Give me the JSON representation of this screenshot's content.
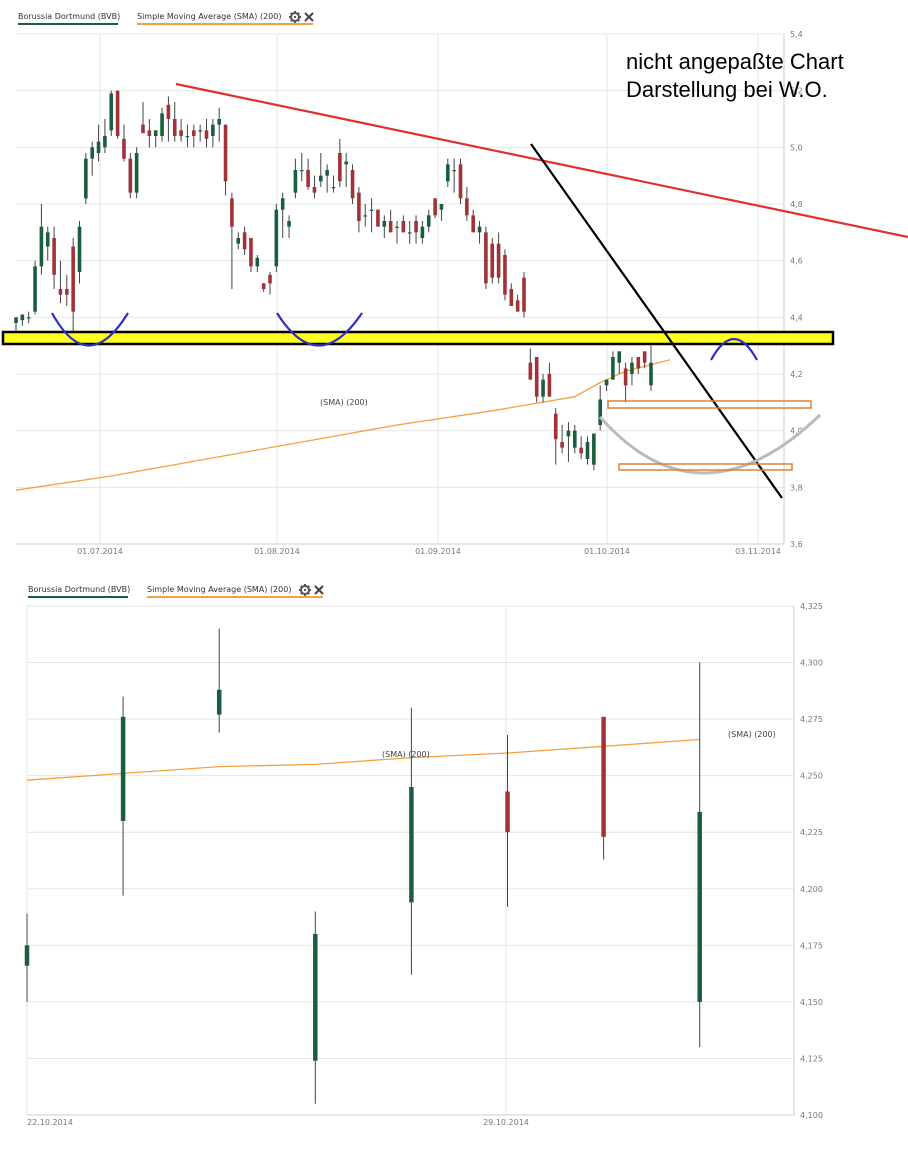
{
  "colors": {
    "up": "#1a5e3e",
    "down": "#a03238",
    "sma": "#f5a040",
    "grid": "#e6e6e6",
    "legend_stock": "#1a5e3e",
    "legend_sma": "#f5a040",
    "resistance": "#e03030",
    "trend": "#000000",
    "support_band": "#ffff20",
    "pattern_blue": "#3030c0",
    "pattern_gray": "#bbbbbb",
    "box_orange": "#e08030"
  },
  "annotation": {
    "line1": "nicht angepaßte Chart",
    "line2": "Darstellung bei W.O."
  },
  "chart_data": [
    {
      "type": "candlestick",
      "legend": {
        "series": "Borussia Dortmund (BVB)",
        "indicator": "Simple Moving Average (SMA) (200)",
        "gear_icon": "gear-icon",
        "close_icon": "close-icon"
      },
      "sma_label": "(SMA) (200)",
      "ylim": [
        3.6,
        5.4
      ],
      "yticks": [
        "5,4",
        "5,2",
        "5,0",
        "4,8",
        "4,6",
        "4,4",
        "4,2",
        "4,0",
        "3,8",
        "3,6"
      ],
      "xticks": [
        "01.07.2014",
        "01.08.2014",
        "01.09.2014",
        "01.10.2014",
        "03.11.2014"
      ],
      "candles": [
        {
          "o": 4.38,
          "h": 4.4,
          "l": 4.34,
          "c": 4.4
        },
        {
          "o": 4.39,
          "h": 4.41,
          "l": 4.37,
          "c": 4.41
        },
        {
          "o": 4.4,
          "h": 4.42,
          "l": 4.38,
          "c": 4.4
        },
        {
          "o": 4.42,
          "h": 4.6,
          "l": 4.41,
          "c": 4.58
        },
        {
          "o": 4.58,
          "h": 4.8,
          "l": 4.55,
          "c": 4.72
        },
        {
          "o": 4.65,
          "h": 4.72,
          "l": 4.6,
          "c": 4.7
        },
        {
          "o": 4.68,
          "h": 4.72,
          "l": 4.5,
          "c": 4.55
        },
        {
          "o": 4.5,
          "h": 4.6,
          "l": 4.45,
          "c": 4.48
        },
        {
          "o": 4.5,
          "h": 4.55,
          "l": 4.44,
          "c": 4.48
        },
        {
          "o": 4.65,
          "h": 4.68,
          "l": 4.34,
          "c": 4.42
        },
        {
          "o": 4.56,
          "h": 4.74,
          "l": 4.52,
          "c": 4.72
        },
        {
          "o": 4.82,
          "h": 4.98,
          "l": 4.8,
          "c": 4.96
        },
        {
          "o": 4.96,
          "h": 5.02,
          "l": 4.9,
          "c": 5.0
        },
        {
          "o": 4.98,
          "h": 5.08,
          "l": 4.95,
          "c": 5.02
        },
        {
          "o": 5.0,
          "h": 5.1,
          "l": 4.98,
          "c": 5.04
        },
        {
          "o": 5.06,
          "h": 5.2,
          "l": 5.04,
          "c": 5.19
        },
        {
          "o": 5.2,
          "h": 5.2,
          "l": 5.03,
          "c": 5.04
        },
        {
          "o": 5.03,
          "h": 5.08,
          "l": 4.95,
          "c": 4.96
        },
        {
          "o": 4.96,
          "h": 4.98,
          "l": 4.82,
          "c": 4.84
        },
        {
          "o": 4.84,
          "h": 5.0,
          "l": 4.82,
          "c": 4.98
        },
        {
          "o": 5.08,
          "h": 5.16,
          "l": 5.05,
          "c": 5.05
        },
        {
          "o": 5.06,
          "h": 5.1,
          "l": 5.0,
          "c": 5.04
        },
        {
          "o": 5.04,
          "h": 5.06,
          "l": 5.0,
          "c": 5.06
        },
        {
          "o": 5.04,
          "h": 5.14,
          "l": 5.02,
          "c": 5.12
        },
        {
          "o": 5.15,
          "h": 5.18,
          "l": 5.02,
          "c": 5.1
        },
        {
          "o": 5.1,
          "h": 5.16,
          "l": 5.02,
          "c": 5.04
        },
        {
          "o": 5.06,
          "h": 5.1,
          "l": 5.02,
          "c": 5.04
        },
        {
          "o": 5.04,
          "h": 5.08,
          "l": 5.0,
          "c": 5.04
        },
        {
          "o": 5.06,
          "h": 5.08,
          "l": 5.0,
          "c": 5.04
        },
        {
          "o": 5.06,
          "h": 5.08,
          "l": 5.02,
          "c": 5.06
        },
        {
          "o": 5.06,
          "h": 5.1,
          "l": 5.0,
          "c": 5.03
        },
        {
          "o": 5.04,
          "h": 5.1,
          "l": 5.0,
          "c": 5.08
        },
        {
          "o": 5.08,
          "h": 5.14,
          "l": 5.02,
          "c": 5.1
        },
        {
          "o": 5.08,
          "h": 5.08,
          "l": 4.83,
          "c": 4.88
        },
        {
          "o": 4.82,
          "h": 4.84,
          "l": 4.5,
          "c": 4.72
        },
        {
          "o": 4.66,
          "h": 4.7,
          "l": 4.64,
          "c": 4.68
        },
        {
          "o": 4.7,
          "h": 4.72,
          "l": 4.62,
          "c": 4.64
        },
        {
          "o": 4.68,
          "h": 4.68,
          "l": 4.56,
          "c": 4.58
        },
        {
          "o": 4.58,
          "h": 4.62,
          "l": 4.56,
          "c": 4.61
        },
        {
          "o": 4.52,
          "h": 4.52,
          "l": 4.49,
          "c": 4.5
        },
        {
          "o": 4.55,
          "h": 4.56,
          "l": 4.48,
          "c": 4.52
        },
        {
          "o": 4.58,
          "h": 4.8,
          "l": 4.56,
          "c": 4.78
        },
        {
          "o": 4.78,
          "h": 4.84,
          "l": 4.68,
          "c": 4.82
        },
        {
          "o": 4.72,
          "h": 4.76,
          "l": 4.68,
          "c": 4.74
        },
        {
          "o": 4.84,
          "h": 4.96,
          "l": 4.82,
          "c": 4.92
        },
        {
          "o": 4.92,
          "h": 4.98,
          "l": 4.88,
          "c": 4.92
        },
        {
          "o": 4.92,
          "h": 4.96,
          "l": 4.85,
          "c": 4.86
        },
        {
          "o": 4.86,
          "h": 4.9,
          "l": 4.82,
          "c": 4.84
        },
        {
          "o": 4.88,
          "h": 4.98,
          "l": 4.86,
          "c": 4.9
        },
        {
          "o": 4.9,
          "h": 4.94,
          "l": 4.84,
          "c": 4.92
        },
        {
          "o": 4.86,
          "h": 4.9,
          "l": 4.84,
          "c": 4.86
        },
        {
          "o": 4.98,
          "h": 5.03,
          "l": 4.86,
          "c": 4.88
        },
        {
          "o": 4.94,
          "h": 4.98,
          "l": 4.86,
          "c": 4.95
        },
        {
          "o": 4.92,
          "h": 4.94,
          "l": 4.8,
          "c": 4.82
        },
        {
          "o": 4.84,
          "h": 4.86,
          "l": 4.7,
          "c": 4.74
        },
        {
          "o": 4.76,
          "h": 4.8,
          "l": 4.72,
          "c": 4.76
        },
        {
          "o": 4.78,
          "h": 4.82,
          "l": 4.7,
          "c": 4.78
        },
        {
          "o": 4.78,
          "h": 4.78,
          "l": 4.72,
          "c": 4.72
        },
        {
          "o": 4.72,
          "h": 4.76,
          "l": 4.68,
          "c": 4.74
        },
        {
          "o": 4.74,
          "h": 4.78,
          "l": 4.7,
          "c": 4.7
        },
        {
          "o": 4.72,
          "h": 4.74,
          "l": 4.66,
          "c": 4.72
        },
        {
          "o": 4.74,
          "h": 4.76,
          "l": 4.7,
          "c": 4.7
        },
        {
          "o": 4.7,
          "h": 4.74,
          "l": 4.66,
          "c": 4.7
        },
        {
          "o": 4.74,
          "h": 4.76,
          "l": 4.66,
          "c": 4.7
        },
        {
          "o": 4.68,
          "h": 4.74,
          "l": 4.66,
          "c": 4.72
        },
        {
          "o": 4.72,
          "h": 4.78,
          "l": 4.7,
          "c": 4.76
        },
        {
          "o": 4.82,
          "h": 4.82,
          "l": 4.75,
          "c": 4.76
        },
        {
          "o": 4.78,
          "h": 4.8,
          "l": 4.74,
          "c": 4.8
        },
        {
          "o": 4.88,
          "h": 4.96,
          "l": 4.86,
          "c": 4.94
        },
        {
          "o": 4.92,
          "h": 4.96,
          "l": 4.84,
          "c": 4.92
        },
        {
          "o": 4.94,
          "h": 4.96,
          "l": 4.8,
          "c": 4.82
        },
        {
          "o": 4.82,
          "h": 4.86,
          "l": 4.74,
          "c": 4.76
        },
        {
          "o": 4.76,
          "h": 4.78,
          "l": 4.7,
          "c": 4.7
        },
        {
          "o": 4.7,
          "h": 4.74,
          "l": 4.66,
          "c": 4.72
        },
        {
          "o": 4.7,
          "h": 4.72,
          "l": 4.5,
          "c": 4.52
        },
        {
          "o": 4.66,
          "h": 4.68,
          "l": 4.52,
          "c": 4.54
        },
        {
          "o": 4.66,
          "h": 4.7,
          "l": 4.52,
          "c": 4.54
        },
        {
          "o": 4.62,
          "h": 4.64,
          "l": 4.46,
          "c": 4.48
        },
        {
          "o": 4.5,
          "h": 4.52,
          "l": 4.44,
          "c": 4.44
        },
        {
          "o": 4.46,
          "h": 4.48,
          "l": 4.42,
          "c": 4.42
        },
        {
          "o": 4.54,
          "h": 4.56,
          "l": 4.4,
          "c": 4.42
        },
        {
          "o": 4.24,
          "h": 4.29,
          "l": 4.18,
          "c": 4.18
        },
        {
          "o": 4.26,
          "h": 4.26,
          "l": 4.1,
          "c": 4.12
        },
        {
          "o": 4.12,
          "h": 4.2,
          "l": 4.1,
          "c": 4.18
        },
        {
          "o": 4.2,
          "h": 4.24,
          "l": 4.12,
          "c": 4.12
        },
        {
          "o": 4.06,
          "h": 4.08,
          "l": 3.88,
          "c": 3.97
        },
        {
          "o": 3.96,
          "h": 4.02,
          "l": 3.92,
          "c": 3.94
        },
        {
          "o": 3.98,
          "h": 4.03,
          "l": 3.89,
          "c": 4.0
        },
        {
          "o": 3.94,
          "h": 4.02,
          "l": 3.92,
          "c": 4.0
        },
        {
          "o": 3.94,
          "h": 3.98,
          "l": 3.9,
          "c": 3.92
        },
        {
          "o": 3.9,
          "h": 3.98,
          "l": 3.88,
          "c": 3.96
        },
        {
          "o": 3.88,
          "h": 3.98,
          "l": 3.86,
          "c": 3.99
        },
        {
          "o": 4.02,
          "h": 4.16,
          "l": 4.0,
          "c": 4.11
        },
        {
          "o": 4.16,
          "h": 4.18,
          "l": 4.14,
          "c": 4.18
        },
        {
          "o": 4.18,
          "h": 4.28,
          "l": 4.18,
          "c": 4.26
        },
        {
          "o": 4.24,
          "h": 4.28,
          "l": 4.2,
          "c": 4.28
        },
        {
          "o": 4.22,
          "h": 4.24,
          "l": 4.1,
          "c": 4.16
        },
        {
          "o": 4.2,
          "h": 4.26,
          "l": 4.16,
          "c": 4.24
        },
        {
          "o": 4.26,
          "h": 4.26,
          "l": 4.2,
          "c": 4.22
        },
        {
          "o": 4.28,
          "h": 4.28,
          "l": 4.22,
          "c": 4.24
        },
        {
          "o": 4.16,
          "h": 4.3,
          "l": 4.14,
          "c": 4.24
        }
      ],
      "sma_points": [
        [
          0,
          3.79
        ],
        [
          15,
          3.84
        ],
        [
          30,
          3.9
        ],
        [
          45,
          3.96
        ],
        [
          60,
          4.02
        ],
        [
          75,
          4.07
        ],
        [
          88,
          4.12
        ],
        [
          92,
          4.17
        ],
        [
          96,
          4.21
        ],
        [
          103,
          4.25
        ]
      ]
    },
    {
      "type": "candlestick",
      "legend": {
        "series": "Borussia Dortmund (BVB)",
        "indicator": "Simple Moving Average (SMA) (200)",
        "gear_icon": "gear-icon",
        "close_icon": "close-icon"
      },
      "sma_label_1": "(SMA) (200)",
      "sma_label_2": "(SMA) (200)",
      "ylim": [
        4.1,
        4.325
      ],
      "yticks": [
        "4,325",
        "4,300",
        "4,275",
        "4,250",
        "4,225",
        "4,200",
        "4,175",
        "4,150",
        "4,125",
        "4,100"
      ],
      "xticks": [
        "22.10.2014",
        "29.10.2014"
      ],
      "candles": [
        {
          "o": 4.166,
          "h": 4.189,
          "l": 4.15,
          "c": 4.175
        },
        {
          "o": 4.23,
          "h": 4.285,
          "l": 4.197,
          "c": 4.276
        },
        {
          "o": 4.277,
          "h": 4.315,
          "l": 4.269,
          "c": 4.288
        },
        {
          "o": 4.124,
          "h": 4.19,
          "l": 4.105,
          "c": 4.18
        },
        {
          "o": 4.194,
          "h": 4.28,
          "l": 4.162,
          "c": 4.245
        },
        {
          "o": 4.243,
          "h": 4.268,
          "l": 4.192,
          "c": 4.225
        },
        {
          "o": 4.276,
          "h": 4.276,
          "l": 4.213,
          "c": 4.223
        },
        {
          "o": 4.15,
          "h": 4.3,
          "l": 4.13,
          "c": 4.234
        }
      ],
      "sma_points": [
        [
          0,
          4.248
        ],
        [
          1,
          4.251
        ],
        [
          2,
          4.254
        ],
        [
          3,
          4.255
        ],
        [
          4,
          4.258
        ],
        [
          5,
          4.26
        ],
        [
          6,
          4.263
        ],
        [
          7,
          4.266
        ]
      ]
    }
  ]
}
